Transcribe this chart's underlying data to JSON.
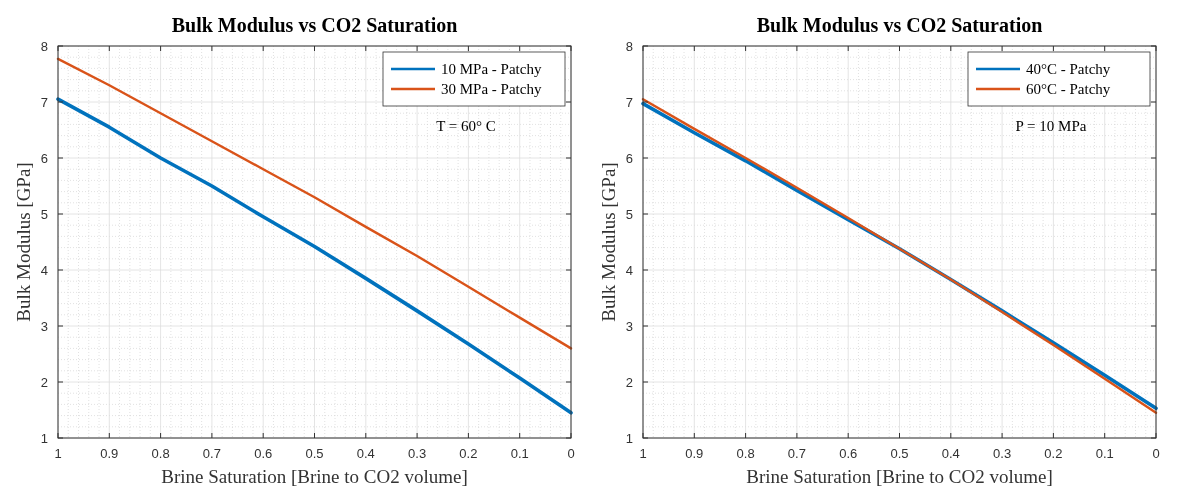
{
  "chart_data": [
    {
      "type": "line",
      "title": "Bulk Modulus vs CO2 Saturation",
      "xlabel": "Brine Saturation [Brine to CO2 volume]",
      "ylabel": "Bulk Modulus [GPa]",
      "annotations": [
        "T = 60° C"
      ],
      "x": [
        1,
        0.9,
        0.8,
        0.7,
        0.6,
        0.5,
        0.4,
        0.3,
        0.2,
        0.1,
        0
      ],
      "xlim": [
        1,
        0
      ],
      "xticks": [
        1,
        0.9,
        0.8,
        0.7,
        0.6,
        0.5,
        0.4,
        0.3,
        0.2,
        0.1,
        0
      ],
      "ylim": [
        1,
        8
      ],
      "yticks": [
        1,
        2,
        3,
        4,
        5,
        6,
        7,
        8
      ],
      "grid": true,
      "legend": "top right",
      "line_style": "solid",
      "series": [
        {
          "name": "10 MPa - Patchy",
          "color": "#0072bd",
          "values": [
            7.05,
            6.55,
            6.0,
            5.5,
            4.95,
            4.42,
            3.85,
            3.27,
            2.68,
            2.07,
            1.45
          ]
        },
        {
          "name": "30 MPa - Patchy",
          "color": "#d95319",
          "values": [
            7.77,
            7.3,
            6.8,
            6.3,
            5.8,
            5.3,
            4.77,
            4.25,
            3.7,
            3.15,
            2.6
          ]
        }
      ]
    },
    {
      "type": "line",
      "title": "Bulk Modulus vs CO2 Saturation",
      "xlabel": "Brine Saturation [Brine to CO2 volume]",
      "ylabel": "Bulk Modulus [GPa]",
      "annotations": [
        "P = 10 MPa"
      ],
      "x": [
        1,
        0.9,
        0.8,
        0.7,
        0.6,
        0.5,
        0.4,
        0.3,
        0.2,
        0.1,
        0
      ],
      "xlim": [
        1,
        0
      ],
      "xticks": [
        1,
        0.9,
        0.8,
        0.7,
        0.6,
        0.5,
        0.4,
        0.3,
        0.2,
        0.1,
        0
      ],
      "ylim": [
        1,
        8
      ],
      "yticks": [
        1,
        2,
        3,
        4,
        5,
        6,
        7,
        8
      ],
      "grid": true,
      "legend": "top right",
      "line_style": "solid",
      "series": [
        {
          "name": "40°C - Patchy",
          "color": "#0072bd",
          "values": [
            6.97,
            6.45,
            5.95,
            5.42,
            4.9,
            4.38,
            3.83,
            3.27,
            2.7,
            2.12,
            1.53
          ]
        },
        {
          "name": "60°C - Patchy",
          "color": "#d95319",
          "values": [
            7.05,
            6.52,
            6.0,
            5.47,
            4.93,
            4.38,
            3.83,
            3.25,
            2.66,
            2.06,
            1.45
          ]
        }
      ]
    }
  ]
}
